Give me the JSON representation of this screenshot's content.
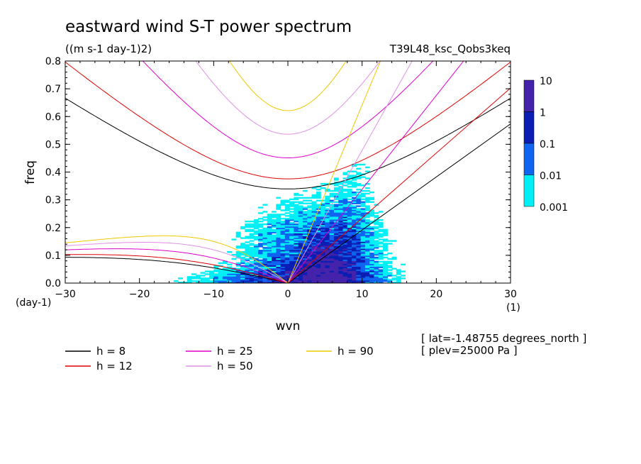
{
  "title": "eastward wind S-T power spectrum",
  "units": "((m s-1 day-1)2)",
  "experiment": "T39L48_ksc_Qobs3keq",
  "meta": {
    "lat": "[ lat=-1.48755 degrees_north ]",
    "plev": "[ plev=25000 Pa ]"
  },
  "colorbar": {
    "levels": [
      "10",
      "1",
      "0.1",
      "0.01",
      "0.001"
    ],
    "colors": [
      "#4422aa",
      "#0a1eb4",
      "#0f64f0",
      "#00f0f5"
    ]
  },
  "chart_data": {
    "type": "heatmap",
    "xlabel": "wvn",
    "xunit": "(1)",
    "ylabel": "freq",
    "yunit": "(day-1)",
    "xlim": [
      -30,
      30
    ],
    "ylim": [
      0,
      0.8
    ],
    "x_ticks": [
      "-30",
      "-20",
      "-10",
      "0",
      "10",
      "20",
      "30"
    ],
    "y_ticks": [
      "0.0",
      "0.1",
      "0.2",
      "0.3",
      "0.4",
      "0.5",
      "0.6",
      "0.7",
      "0.8"
    ],
    "curve_types": [
      "kelvin",
      "n1_gravity",
      "n1_rossby"
    ],
    "series": [
      {
        "name": "h =  8",
        "h": 8,
        "color": "#000000"
      },
      {
        "name": "h = 12",
        "h": 12,
        "color": "#e00000"
      },
      {
        "name": "h = 25",
        "h": 25,
        "color": "#e000c8"
      },
      {
        "name": "h = 50",
        "h": 50,
        "color": "#e090e8"
      },
      {
        "name": "h = 90",
        "h": 90,
        "color": "#f0c800"
      }
    ]
  }
}
